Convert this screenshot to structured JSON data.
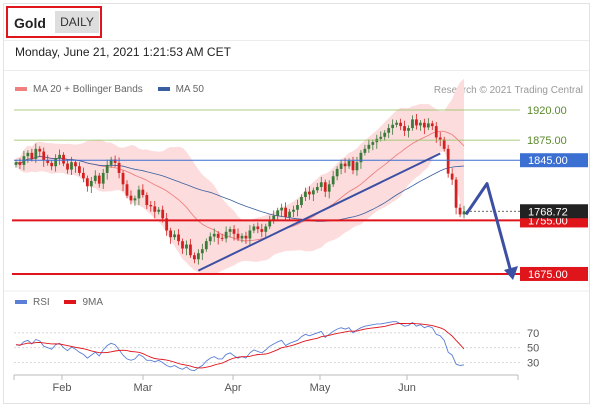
{
  "header": {
    "asset_label": "Gold",
    "period_label": "DAILY",
    "timestamp": "Monday, June 21, 2021 1:21:53 AM CET"
  },
  "legend": {
    "ma20_label": "MA 20 + Bollinger Bands",
    "ma50_label": "MA 50",
    "rsi_label": "RSI",
    "rsi9_label": "9MA"
  },
  "credit": "Research © 2021 Trading Central",
  "colors": {
    "accent_red": "#e0151c",
    "ma20": "#f08080",
    "ma50": "#3a5fa0",
    "band": "#fcdcdc",
    "up_candle": "#3a7a3a",
    "down_candle": "#d42020",
    "level_green": "#8dbf5a",
    "level_blue": "#3b6fd1",
    "rsi": "#5b7fd6",
    "rsi_ma": "#e0151c",
    "trend_line": "#3b4fa3"
  },
  "chart_data": {
    "type": "candlestick",
    "x_tick_labels": [
      "Feb",
      "Mar",
      "Apr",
      "May",
      "Jun"
    ],
    "y_range": [
      1660,
      1935
    ],
    "last_price": "1768.72",
    "levels": [
      {
        "value": 1920,
        "label": "1920.00",
        "style": "green-thin"
      },
      {
        "value": 1875,
        "label": "1875.00",
        "style": "green-thin"
      },
      {
        "value": 1845,
        "label": "1845.00",
        "style": "blue"
      },
      {
        "value": 1755,
        "label": "1755.00",
        "style": "red-thick"
      },
      {
        "value": 1675,
        "label": "1675.00",
        "style": "red-thick"
      }
    ],
    "closes": [
      1842,
      1838,
      1851,
      1856,
      1847,
      1862,
      1858,
      1845,
      1841,
      1836,
      1848,
      1853,
      1840,
      1831,
      1842,
      1836,
      1826,
      1818,
      1806,
      1814,
      1822,
      1810,
      1826,
      1838,
      1846,
      1841,
      1826,
      1809,
      1792,
      1785,
      1788,
      1801,
      1793,
      1778,
      1776,
      1768,
      1771,
      1758,
      1740,
      1730,
      1734,
      1724,
      1713,
      1719,
      1703,
      1697,
      1706,
      1712,
      1724,
      1731,
      1735,
      1729,
      1728,
      1738,
      1742,
      1735,
      1728,
      1732,
      1728,
      1740,
      1746,
      1742,
      1738,
      1746,
      1756,
      1762,
      1770,
      1774,
      1760,
      1768,
      1771,
      1778,
      1790,
      1798,
      1794,
      1800,
      1805,
      1812,
      1798,
      1809,
      1821,
      1832,
      1840,
      1836,
      1844,
      1830,
      1842,
      1856,
      1862,
      1868,
      1872,
      1877,
      1880,
      1886,
      1893,
      1898,
      1901,
      1896,
      1889,
      1893,
      1906,
      1897,
      1901,
      1894,
      1900,
      1896,
      1879,
      1876,
      1862,
      1825,
      1816,
      1774,
      1764,
      1768.72
    ],
    "rsi_levels": [
      70,
      50,
      30
    ],
    "rsi_values": [
      54,
      53,
      58,
      60,
      55,
      61,
      59,
      52,
      50,
      48,
      54,
      56,
      50,
      46,
      51,
      48,
      44,
      41,
      36,
      40,
      44,
      39,
      47,
      53,
      56,
      54,
      47,
      40,
      35,
      33,
      35,
      41,
      38,
      33,
      33,
      31,
      33,
      30,
      26,
      24,
      26,
      23,
      21,
      24,
      20,
      19,
      23,
      26,
      32,
      36,
      38,
      35,
      35,
      41,
      43,
      39,
      36,
      38,
      36,
      43,
      47,
      45,
      43,
      47,
      52,
      55,
      58,
      60,
      53,
      56,
      58,
      60,
      65,
      68,
      66,
      68,
      70,
      72,
      64,
      68,
      72,
      75,
      77,
      75,
      77,
      70,
      74,
      77,
      79,
      80,
      81,
      82,
      82,
      83,
      84,
      85,
      85,
      82,
      79,
      80,
      84,
      79,
      81,
      77,
      79,
      77,
      68,
      66,
      60,
      44,
      40,
      28,
      26,
      27
    ]
  }
}
